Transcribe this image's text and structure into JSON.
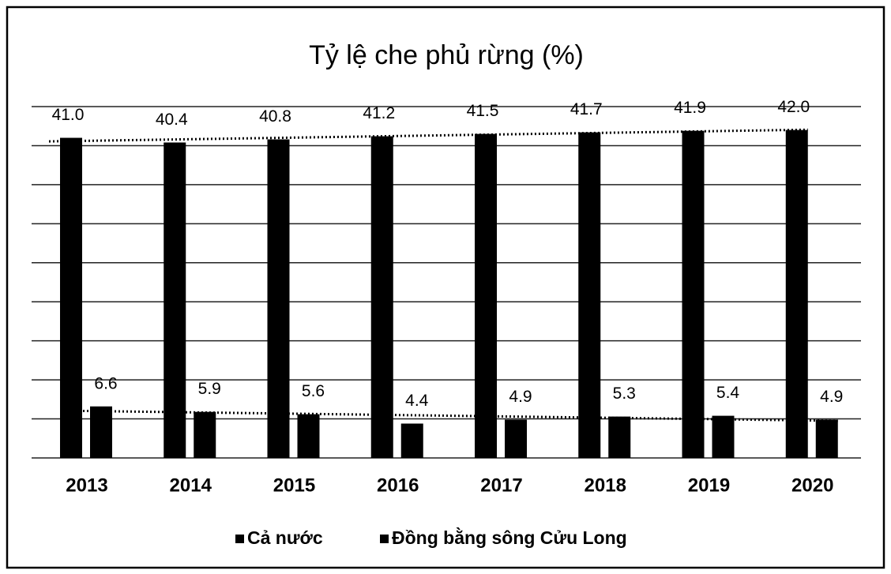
{
  "chart_data": {
    "type": "bar",
    "title": "Tỷ lệ che phủ rừng (%)",
    "categories": [
      "2013",
      "2014",
      "2015",
      "2016",
      "2017",
      "2018",
      "2019",
      "2020"
    ],
    "series": [
      {
        "name": "Cả nước",
        "color": "#000000",
        "values": [
          41.0,
          40.4,
          40.8,
          41.2,
          41.5,
          41.7,
          41.9,
          42.0
        ],
        "value_labels": [
          "41.0",
          "40.4",
          "40.8",
          "41.2",
          "41.5",
          "41.7",
          "41.9",
          "42.0"
        ]
      },
      {
        "name": "Đồng bằng sông Cửu Long",
        "color": "#000000",
        "values": [
          6.6,
          5.9,
          5.6,
          4.4,
          4.9,
          5.3,
          5.4,
          4.9
        ]
      }
    ],
    "ylim": [
      0,
      45
    ],
    "yticks": [
      0,
      5,
      10,
      15,
      20,
      25,
      30,
      35,
      40,
      45
    ],
    "grid": true,
    "trendline": true,
    "legend": "bottom"
  }
}
